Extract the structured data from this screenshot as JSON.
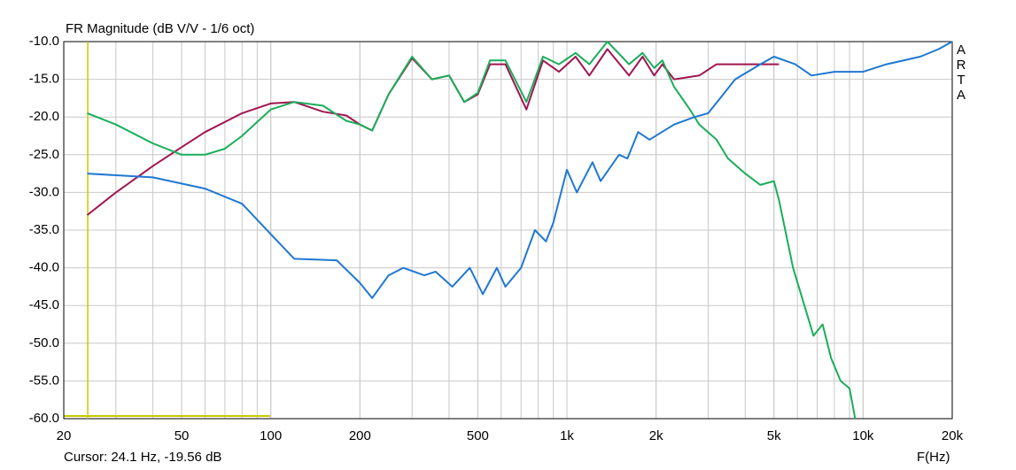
{
  "chart_data": {
    "type": "line",
    "title": "FR Magnitude (dB V/V - 1/6 oct)",
    "x_label": "F(Hz)",
    "brand": "ARTA",
    "x_log": true,
    "grid": true,
    "log_minor_grid": true,
    "xlim": [
      20,
      20000
    ],
    "ylim": [
      -60,
      -10
    ],
    "xticks": [
      20,
      50,
      100,
      200,
      500,
      {
        "value": 1000,
        "label": "1k"
      },
      {
        "value": 2000,
        "label": "2k"
      },
      {
        "value": 5000,
        "label": "5k"
      },
      {
        "value": 10000,
        "label": "10k"
      },
      {
        "value": 20000,
        "label": "20k"
      }
    ],
    "yticks": [
      {
        "value": -60,
        "label": "-60.0"
      },
      {
        "value": -55,
        "label": "-55.0"
      },
      {
        "value": -50,
        "label": "-50.0"
      },
      {
        "value": -45,
        "label": "-45.0"
      },
      {
        "value": -40,
        "label": "-40.0"
      },
      {
        "value": -35,
        "label": "-35.0"
      },
      {
        "value": -30,
        "label": "-30.0"
      },
      {
        "value": -25,
        "label": "-25.0"
      },
      {
        "value": -20,
        "label": "-20.0"
      },
      {
        "value": -15,
        "label": "-15.0"
      },
      {
        "value": -10,
        "label": "-10.0"
      }
    ],
    "cursor": {
      "x": 24.1,
      "y": -19.56,
      "label": "Cursor: 24.1 Hz, -19.56 dB",
      "color": "#c8c800"
    },
    "series": [
      {
        "color": "#a0154f",
        "x": [
          24,
          30,
          40,
          50,
          60,
          80,
          100,
          120,
          150,
          180,
          200,
          220,
          250,
          300,
          350,
          400,
          450,
          500,
          550,
          620,
          730,
          830,
          940,
          1070,
          1190,
          1370,
          1620,
          1800,
          1970,
          2100,
          2300,
          2800,
          3200,
          3700,
          4200,
          5200
        ],
        "values": [
          -33,
          -30,
          -26.5,
          -24,
          -22,
          -19.5,
          -18.2,
          -18,
          -19.3,
          -19.8,
          -21,
          -21.8,
          -17,
          -12.2,
          -15,
          -14.5,
          -18,
          -17,
          -13,
          -13,
          -19,
          -12.5,
          -14,
          -12,
          -14.5,
          -11,
          -14.5,
          -12,
          -14.5,
          -13,
          -15,
          -14.5,
          -13,
          -13,
          -13,
          -13
        ]
      },
      {
        "color": "#1aae5a",
        "x": [
          24,
          30,
          40,
          50,
          60,
          70,
          80,
          100,
          120,
          150,
          180,
          200,
          220,
          250,
          300,
          350,
          400,
          450,
          500,
          550,
          620,
          730,
          830,
          940,
          1070,
          1190,
          1370,
          1620,
          1800,
          1970,
          2100,
          2300,
          2600,
          2800,
          3200,
          3500,
          4000,
          4500,
          5000,
          5200,
          5800,
          6800,
          7300,
          7800,
          8400,
          9000,
          9400
        ],
        "values": [
          -19.5,
          -21,
          -23.5,
          -25,
          -25,
          -24.2,
          -22.5,
          -19,
          -18,
          -18.5,
          -20.5,
          -21,
          -21.8,
          -17,
          -12,
          -15,
          -14.5,
          -18,
          -16.8,
          -12.5,
          -12.5,
          -18,
          -12,
          -13,
          -11.5,
          -13,
          -10,
          -13,
          -11.5,
          -13.5,
          -12.5,
          -16,
          -19,
          -21,
          -23,
          -25.5,
          -27.5,
          -29,
          -28.5,
          -31,
          -40,
          -49,
          -47.5,
          -52,
          -55,
          -56,
          -60
        ]
      },
      {
        "color": "#1f78d2",
        "x": [
          24,
          40,
          60,
          80,
          96,
          120,
          167,
          200,
          220,
          250,
          280,
          330,
          360,
          410,
          470,
          520,
          580,
          620,
          700,
          780,
          850,
          900,
          1000,
          1080,
          1220,
          1300,
          1500,
          1600,
          1740,
          1900,
          2300,
          2700,
          3000,
          3700,
          4500,
          5000,
          5900,
          6700,
          8000,
          10000,
          12000,
          15600,
          18000,
          20000
        ],
        "values": [
          -27.5,
          -28,
          -29.5,
          -31.5,
          -34.8,
          -38.8,
          -39,
          -42,
          -44,
          -41,
          -40,
          -41,
          -40.5,
          -42.5,
          -40,
          -43.5,
          -40,
          -42.5,
          -40,
          -35,
          -36.5,
          -34,
          -27,
          -30,
          -26,
          -28.5,
          -25,
          -25.5,
          -22,
          -23,
          -21,
          -20,
          -19.5,
          -15,
          -13,
          -12,
          -13,
          -14.5,
          -14,
          -14,
          -13,
          -12,
          -11,
          -10
        ]
      }
    ]
  }
}
